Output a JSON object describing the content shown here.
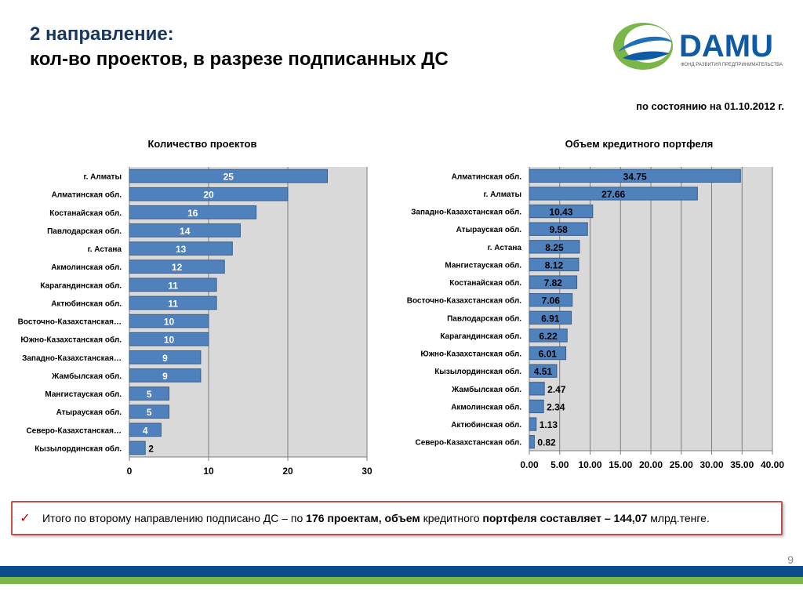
{
  "header": {
    "title_line1": "2  направление:",
    "title_line2": "кол-во проектов,  в разрезе подписанных ДС",
    "status_date": "по состоянию на 01.10.2012 г."
  },
  "logo": {
    "text": "DAMU",
    "subtitle": "ФОНД РАЗВИТИЯ ПРЕДПРИНИМАТЕЛЬСТВА",
    "icon": "damu-swirl-logo",
    "colors": {
      "blue": "#0f5aa5",
      "green": "#7ab648",
      "swirl_blue": "#1f6fb7"
    }
  },
  "chart_data": [
    {
      "type": "bar",
      "orientation": "horizontal",
      "title": "Количество проектов",
      "categories": [
        "г. Алматы",
        "Алматинская обл.",
        "Костанайская обл.",
        "Павлодарская обл.",
        "г. Астана",
        "Акмолинская обл.",
        "Карагандинская обл.",
        "Актюбинская обл.",
        "Восточно-Казахстанская…",
        "Южно-Казахстанская обл.",
        "Западно-Казахстанская…",
        "Жамбылская обл.",
        "Мангистауская обл.",
        "Атырауская обл.",
        "Северо-Казахстанская…",
        "Кызылординская обл."
      ],
      "values": [
        25,
        20,
        16,
        14,
        13,
        12,
        11,
        11,
        10,
        10,
        9,
        9,
        5,
        5,
        4,
        2
      ],
      "value_labels": [
        "25",
        "20",
        "16",
        "14",
        "13",
        "12",
        "11",
        "11",
        "10",
        "10",
        "9",
        "9",
        "5",
        "5",
        "4",
        "2"
      ],
      "xlim": [
        0,
        30
      ],
      "xticks": [
        0,
        10,
        20,
        30
      ],
      "xtick_labels": [
        "0",
        "10",
        "20",
        "30"
      ],
      "grid": true,
      "label_position": "inside",
      "bar_color": "#4f81bd",
      "label_color": "#ffffff"
    },
    {
      "type": "bar",
      "orientation": "horizontal",
      "title": "Объем кредитного портфеля",
      "categories": [
        "Алматинская обл.",
        "г. Алматы",
        "Западно-Казахстанская обл.",
        "Атырауская обл.",
        "г. Астана",
        "Мангистауская обл.",
        "Костанайская обл.",
        "Восточно-Казахстанская обл.",
        "Павлодарская обл.",
        "Карагандинская обл.",
        "Южно-Казахстанская обл.",
        "Кызылординская обл.",
        "Жамбылская обл.",
        "Акмолинская обл.",
        "Актюбинская обл.",
        "Северо-Казахстанская обл."
      ],
      "values": [
        34.75,
        27.66,
        10.43,
        9.58,
        8.25,
        8.12,
        7.82,
        7.06,
        6.91,
        6.22,
        6.01,
        4.51,
        2.47,
        2.34,
        1.13,
        0.82
      ],
      "value_labels": [
        "34.75",
        "27.66",
        "10.43",
        "9.58",
        "8.25",
        "8.12",
        "7.82",
        "7.06",
        "6.91",
        "6.22",
        "6.01",
        "4.51",
        "2.47",
        "2.34",
        "1.13",
        "0.82"
      ],
      "xlim": [
        0,
        40
      ],
      "xticks": [
        0,
        5,
        10,
        15,
        20,
        25,
        30,
        35,
        40
      ],
      "xtick_labels": [
        "0.00",
        "5.00",
        "10.00",
        "15.00",
        "20.00",
        "25.00",
        "30.00",
        "35.00",
        "40.00"
      ],
      "grid": true,
      "label_position": "inside",
      "bar_color": "#4f81bd",
      "label_color": "#000000"
    }
  ],
  "summary": {
    "check_icon": "checkmark-icon",
    "part1": "Итого по второму направлению подписано ДС – по ",
    "count": "176",
    "part2": "  проектам, объем",
    "part3": " кредитного ",
    "part4": "портфеля составляет – 144,07",
    "part5": " млрд.тенге."
  },
  "footer": {
    "page_number": "9",
    "stripe_blue": "#0b4c8c",
    "stripe_green": "#7ab648"
  }
}
